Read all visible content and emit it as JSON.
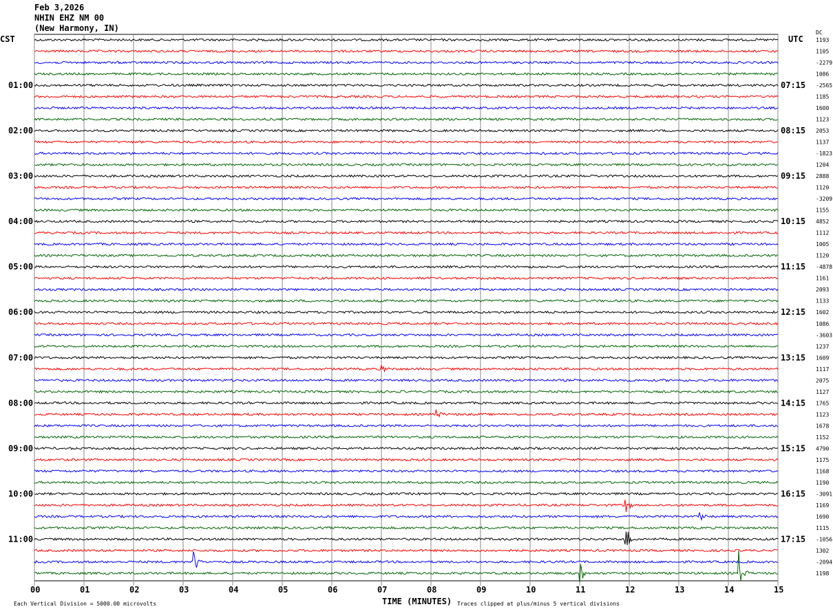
{
  "header": {
    "date": "Feb 3,2026",
    "station": "NHIN EHZ NM 00",
    "location": "(New Harmony, IN)"
  },
  "chart_data": {
    "type": "line",
    "subtype": "helicorder",
    "left_axis_label": "CST",
    "right_axis_label": "UTC",
    "dc_header": "DC",
    "xlabel": "TIME (MINUTES)",
    "xlim": [
      0,
      15
    ],
    "x_ticks": [
      "00",
      "01",
      "02",
      "03",
      "04",
      "05",
      "06",
      "07",
      "08",
      "09",
      "10",
      "11",
      "12",
      "13",
      "14",
      "15"
    ],
    "left_time_labels": [
      "01:00",
      "02:00",
      "03:00",
      "04:00",
      "05:00",
      "06:00",
      "07:00",
      "08:00",
      "09:00",
      "10:00",
      "11:00"
    ],
    "right_time_labels": [
      "07:15",
      "08:15",
      "09:15",
      "10:15",
      "11:15",
      "12:15",
      "13:15",
      "14:15",
      "15:15",
      "16:15",
      "17:15"
    ],
    "trace_colors": [
      "#000000",
      "#ff0000",
      "#0000ff",
      "#006400"
    ],
    "trace_count": 48,
    "dc_offsets": [
      1193,
      1105,
      -2279,
      1086,
      -2565,
      1185,
      1600,
      1123,
      2053,
      1137,
      -1823,
      1204,
      2888,
      1120,
      -3209,
      1155,
      4852,
      1112,
      1005,
      1120,
      -4878,
      1161,
      2093,
      1133,
      1602,
      1086,
      -3603,
      1237,
      1609,
      1117,
      2075,
      1127,
      1765,
      1123,
      1678,
      1152,
      4790,
      1175,
      1168,
      1190,
      -3091,
      1169,
      1690,
      1115,
      -1056,
      1302,
      -2094,
      1198
    ],
    "events": [
      {
        "trace": 29,
        "minute": 7.0,
        "amplitude": 1.2
      },
      {
        "trace": 33,
        "minute": 8.1,
        "amplitude": 1.0
      },
      {
        "trace": 42,
        "minute": 13.4,
        "amplitude": 1.5
      },
      {
        "trace": 44,
        "minute": 11.9,
        "amplitude": 4.0
      },
      {
        "trace": 46,
        "minute": 3.2,
        "amplitude": 3.0
      },
      {
        "trace": 47,
        "minute": 14.2,
        "amplitude": 5.0
      },
      {
        "trace": 47,
        "minute": 11.0,
        "amplitude": 2.0
      },
      {
        "trace": 41,
        "minute": 11.9,
        "amplitude": 2.0
      }
    ],
    "scale_note": "Each Vertical Division = 5000.00 microvolts",
    "clip_note": "Traces clipped at plus/minus 5 vertical divisions",
    "grid": true
  }
}
